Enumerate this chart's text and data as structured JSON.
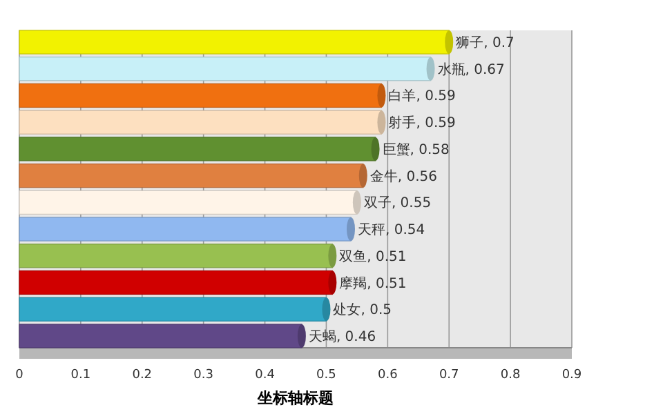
{
  "chart_data": {
    "type": "bar",
    "orientation": "horizontal",
    "xlabel": "坐标轴标题",
    "categories": [
      null,
      null,
      null,
      null,
      null,
      null,
      null,
      null,
      null,
      null,
      null,
      null
    ],
    "values": [
      0.7,
      0.67,
      0.59,
      0.59,
      0.58,
      0.56,
      0.55,
      0.54,
      0.51,
      0.51,
      0.5,
      0.46
    ],
    "value_labels": [
      "狮子, 0.7",
      "水瓶, 0.67",
      "白羊, 0.59",
      "射手, 0.59",
      "巨蟹, 0.58",
      "金牛, 0.56",
      "双子, 0.55",
      "天秤, 0.54",
      "双鱼, 0.51",
      "摩羯, 0.51",
      "处女, 0.5",
      "天蝎, 0.46"
    ],
    "colors": [
      "#f2f200",
      "#c8f0f8",
      "#f07010",
      "#fde0c0",
      "#609030",
      "#e08040",
      "#fff4e8",
      "#90b8f0",
      "#98c050",
      "#d00000",
      "#30a8c8",
      "#604888"
    ],
    "xlim": [
      0,
      0.9
    ],
    "xticks": [
      0,
      0.1,
      0.2,
      0.3,
      0.4,
      0.5,
      0.6,
      0.7,
      0.8,
      0.9
    ],
    "grid": "x",
    "tick_labels": "x"
  }
}
